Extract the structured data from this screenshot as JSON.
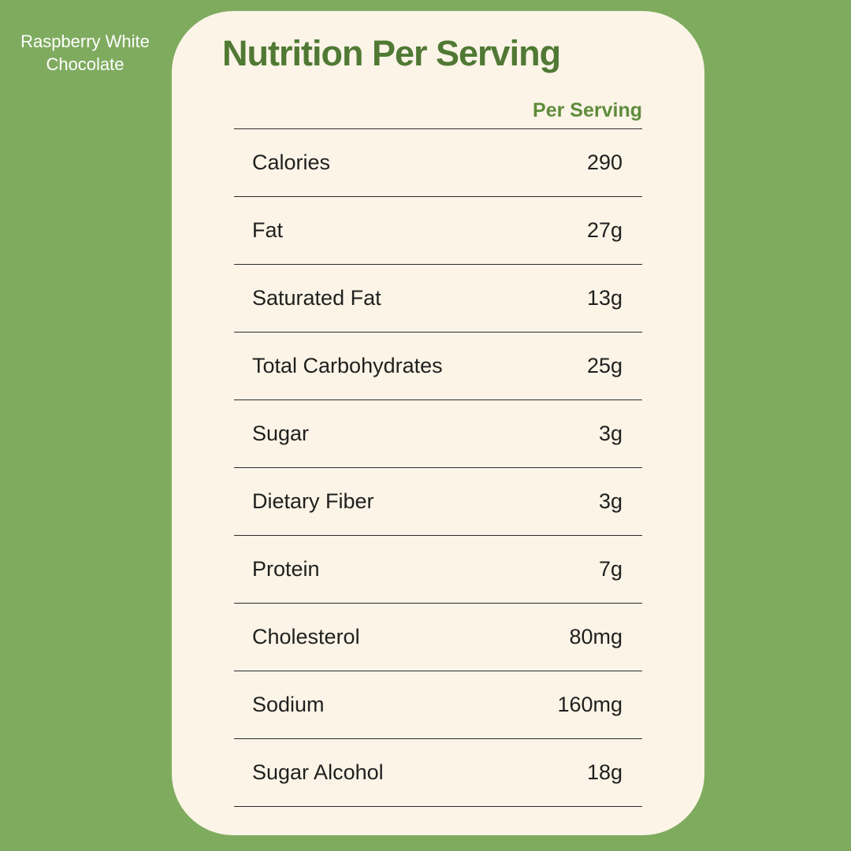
{
  "side_label": {
    "text": "Raspberry White Chocolate"
  },
  "card": {
    "title": "Nutrition Per Serving",
    "column_header": "Per Serving",
    "table": {
      "rows": [
        {
          "label": "Calories",
          "value": "290"
        },
        {
          "label": "Fat",
          "value": "27g"
        },
        {
          "label": "Saturated Fat",
          "value": "13g"
        },
        {
          "label": "Total Carbohydrates",
          "value": "25g"
        },
        {
          "label": "Sugar",
          "value": "3g"
        },
        {
          "label": "Dietary Fiber",
          "value": "3g"
        },
        {
          "label": "Protein",
          "value": "7g"
        },
        {
          "label": "Cholesterol",
          "value": "80mg"
        },
        {
          "label": "Sodium",
          "value": "160mg"
        },
        {
          "label": "Sugar Alcohol",
          "value": "18g"
        }
      ]
    }
  },
  "colors": {
    "background-green": "#7FAB5F",
    "card-cream": "#FCF4E7",
    "title-green": "#507934",
    "header-green": "#5F8C3C",
    "row-text": "#1F201E",
    "divider": "#2B2B2B",
    "side-label-white": "#FFFFFF"
  }
}
